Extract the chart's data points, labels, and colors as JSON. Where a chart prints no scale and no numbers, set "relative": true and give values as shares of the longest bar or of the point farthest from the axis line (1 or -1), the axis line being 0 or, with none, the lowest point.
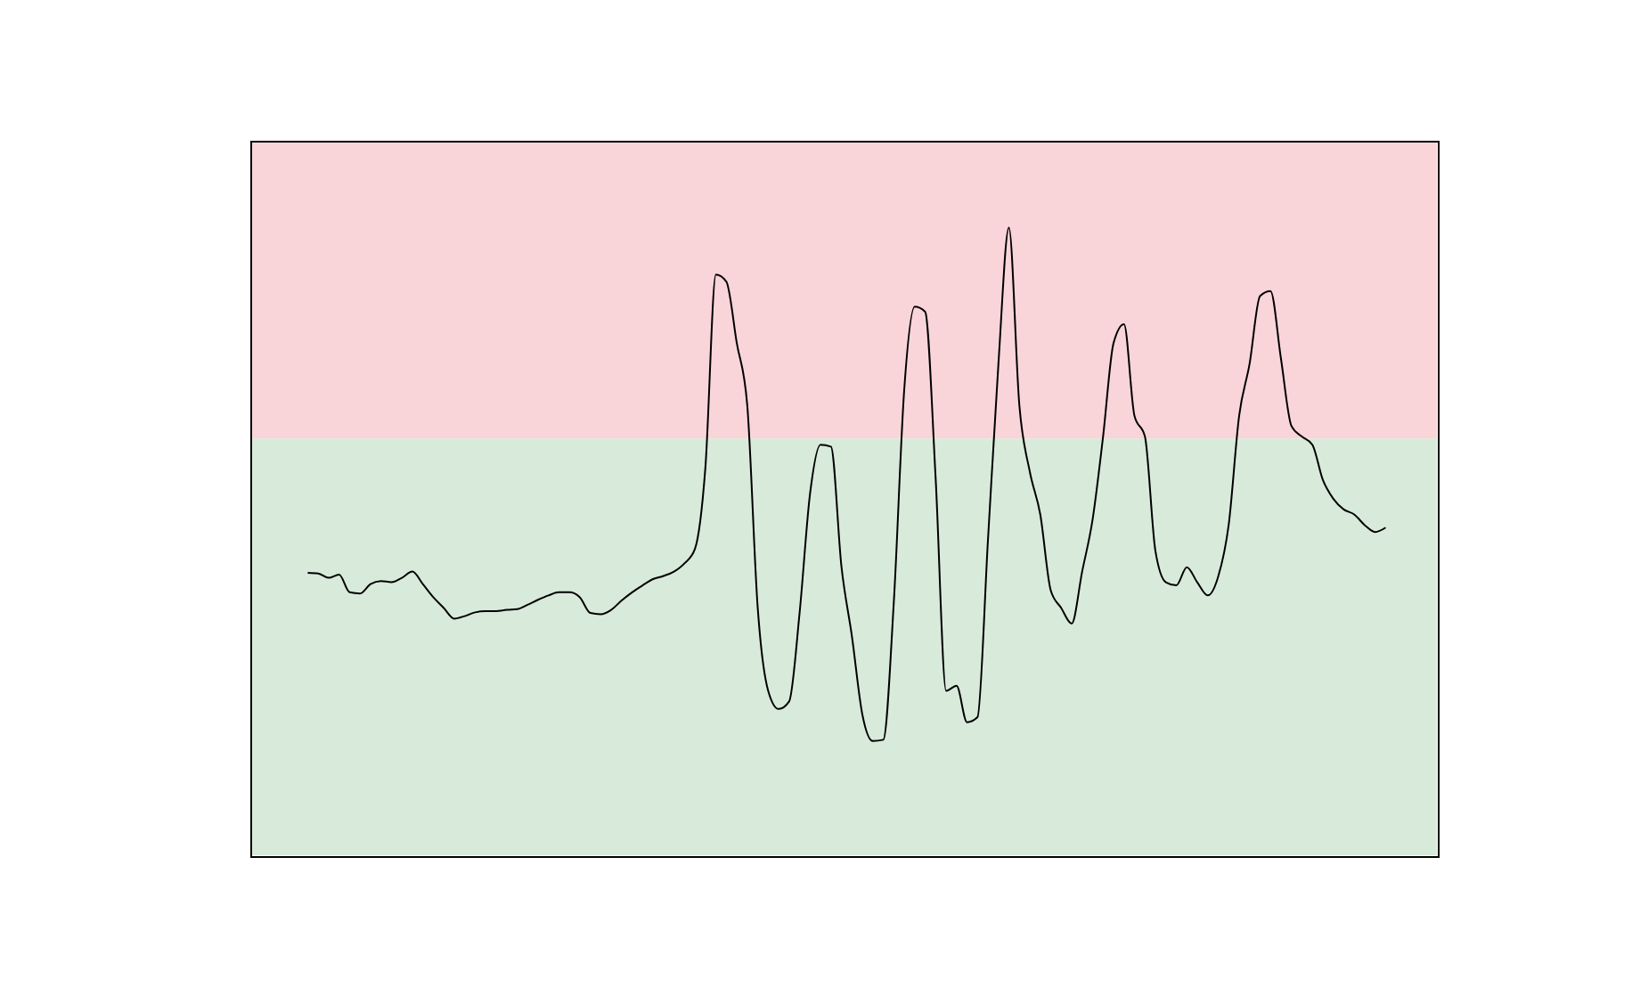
{
  "chart_data": {
    "type": "line",
    "relative": true,
    "categories": [
      null,
      null,
      null,
      null,
      null,
      null,
      null,
      null,
      null,
      null,
      null,
      null,
      null,
      null,
      null,
      null,
      null,
      null,
      null,
      null,
      null,
      null,
      null,
      null,
      null,
      null,
      null,
      null,
      null,
      null,
      null,
      null,
      null,
      null,
      null,
      null,
      null,
      null,
      null,
      null,
      null,
      null,
      null,
      null,
      null,
      null,
      null,
      null,
      null,
      null,
      null,
      null,
      null,
      null,
      null,
      null,
      null,
      null,
      null,
      null,
      null,
      null,
      null,
      null,
      null,
      null,
      null,
      null,
      null,
      null,
      null,
      null,
      null,
      null,
      null,
      null,
      null,
      null,
      null,
      null,
      null,
      null,
      null,
      null,
      null,
      null,
      null,
      null,
      null,
      null,
      null,
      null,
      null,
      null,
      null,
      null,
      null,
      null,
      null,
      null,
      null,
      null,
      null,
      null
    ],
    "series": [
      {
        "color": "#000000",
        "values": [
          0.45,
          0.449,
          0.442,
          0.447,
          0.419,
          0.417,
          0.432,
          0.437,
          0.435,
          0.442,
          0.452,
          0.432,
          0.411,
          0.394,
          0.377,
          0.381,
          0.387,
          0.389,
          0.389,
          0.391,
          0.392,
          0.399,
          0.407,
          0.414,
          0.419,
          0.419,
          0.411,
          0.386,
          0.384,
          0.391,
          0.406,
          0.419,
          0.43,
          0.44,
          0.445,
          0.452,
          0.465,
          0.488,
          0.618,
          0.925,
          0.914,
          0.816,
          0.717,
          0.394,
          0.262,
          0.233,
          0.245,
          0.386,
          0.576,
          0.654,
          0.651,
          0.46,
          0.349,
          0.224,
          0.182,
          0.184,
          0.402,
          0.742,
          0.874,
          0.866,
          0.601,
          0.262,
          0.27,
          0.212,
          0.22,
          0.502,
          0.783,
          1.0,
          0.717,
          0.611,
          0.543,
          0.422,
          0.394,
          0.369,
          0.452,
          0.535,
          0.667,
          0.816,
          0.846,
          0.7,
          0.667,
          0.485,
          0.435,
          0.43,
          0.459,
          0.435,
          0.414,
          0.444,
          0.526,
          0.7,
          0.783,
          0.891,
          0.899,
          0.791,
          0.684,
          0.667,
          0.654,
          0.598,
          0.568,
          0.551,
          0.543,
          0.526,
          0.515,
          0.522
        ]
      }
    ],
    "bands": [
      {
        "axis": "y",
        "from": 0.664,
        "to": 1.137,
        "color": "#f9d5d9"
      },
      {
        "axis": "y",
        "from": 0,
        "to": 0.664,
        "color": "#d8eada"
      }
    ],
    "line_style": "solid",
    "marker": "none",
    "grid": false,
    "legend": false
  }
}
